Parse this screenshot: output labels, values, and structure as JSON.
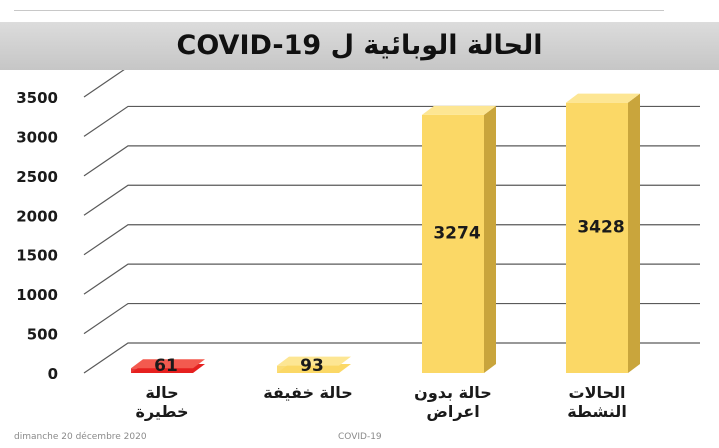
{
  "chart_data": {
    "type": "bar",
    "title": "الحالة الوبائية  ل   COVID-19",
    "categories": [
      "حالة\nخطيرة",
      "حالة خفيفة",
      "حالة بدون\nاعراض",
      "الحالات\nالنشطة"
    ],
    "values": [
      61,
      93,
      3274,
      3428
    ],
    "value_labels": [
      "61",
      "93",
      "3274",
      "3428"
    ],
    "yticks": [
      "0",
      "500",
      "1000",
      "1500",
      "2000",
      "2500",
      "3000",
      "3500"
    ],
    "ylim": [
      0,
      3500
    ],
    "grid": true,
    "legend": "none",
    "colors": {
      "bars": [
        "#e5201f",
        "#fbd866",
        "#fbd866",
        "#fbd866"
      ],
      "bar_sides": [
        "#a81212",
        "#c9a53c",
        "#c9a53c",
        "#c9a53c"
      ],
      "bar_tops": [
        "#f35a4f",
        "#fde693",
        "#fde693",
        "#fde693"
      ],
      "title_band": "#cfcfcf"
    }
  },
  "footer": {
    "date": "dimanche 20 décembre 2020",
    "center": "COVID-19"
  }
}
